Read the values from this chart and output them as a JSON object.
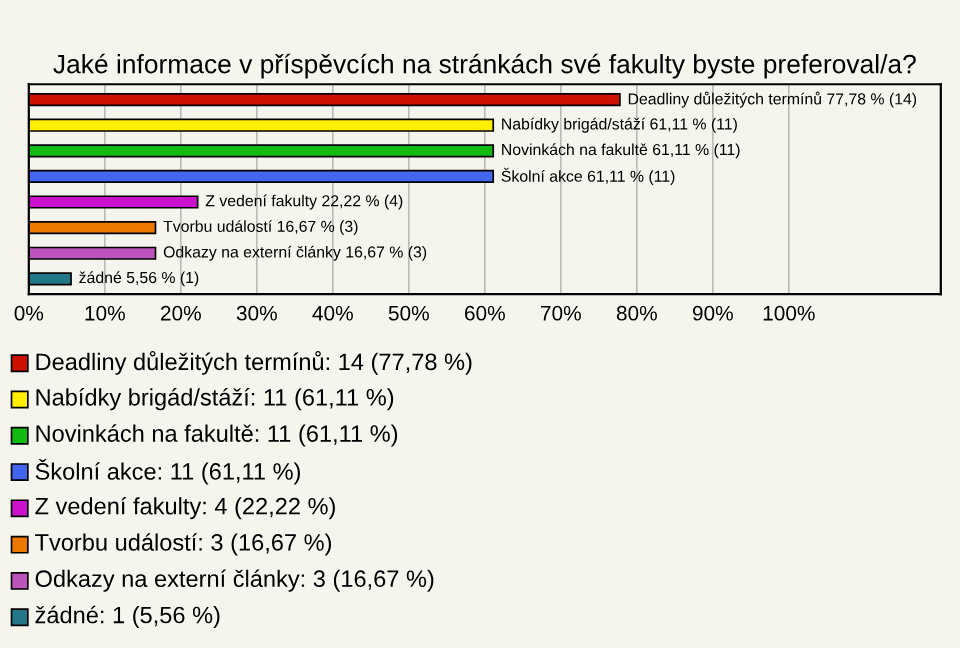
{
  "chart_data": {
    "type": "bar",
    "orientation": "horizontal",
    "title": "Jaké informace v příspěvcích na stránkách své fakulty byste preferoval/a?",
    "categories": [
      "Deadliny důležitých termínů",
      "Nabídky brigád/stáží",
      "Novinkách na fakultě",
      "Školní akce",
      "Z vedení fakulty",
      "Tvorbu událostí",
      "Odkazy na externí články",
      "žádné"
    ],
    "values": [
      77.78,
      61.11,
      61.11,
      61.11,
      22.22,
      16.67,
      16.67,
      5.56
    ],
    "colors": [
      "#cc1100",
      "#ffee00",
      "#11bb11",
      "#4466ee",
      "#cc11cc",
      "#ee7700",
      "#bb55bb",
      "#227788"
    ],
    "value_labels": [
      "77,78 % (14)",
      "61,11 % (11)",
      "61,11 % (11)",
      "61,11 % (11)",
      "22,22 % (4)",
      "16,67 % (3)",
      "16,67 % (3)",
      "5,56 % (1)"
    ],
    "annotations": [
      "Deadliny důležitých termínů: 14 (77,78 %)",
      "Nabídky brigád/stáží: 11 (61,11 %)",
      "Novinkách na fakultě: 11 (61,11 %)",
      "Školní akce: 11 (61,11 %)",
      "Z vedení fakulty: 4 (22,22 %)",
      "Tvorbu událostí: 3 (16,67 %)",
      "Odkazy na externí články: 3 (16,67 %)",
      "žádné: 1 (5,56 %)"
    ],
    "xlim": [
      0,
      120
    ],
    "xticks": [
      {
        "value": 0,
        "label": "0%"
      },
      {
        "value": 10,
        "label": "10%"
      },
      {
        "value": 20,
        "label": "20%"
      },
      {
        "value": 30,
        "label": "30%"
      },
      {
        "value": 40,
        "label": "40%"
      },
      {
        "value": 50,
        "label": "50%"
      },
      {
        "value": 60,
        "label": "60%"
      },
      {
        "value": 70,
        "label": "70%"
      },
      {
        "value": 80,
        "label": "80%"
      },
      {
        "value": 90,
        "label": "90%"
      },
      {
        "value": 100,
        "label": "100%"
      }
    ],
    "grid": "x",
    "tick_labels": "x"
  }
}
